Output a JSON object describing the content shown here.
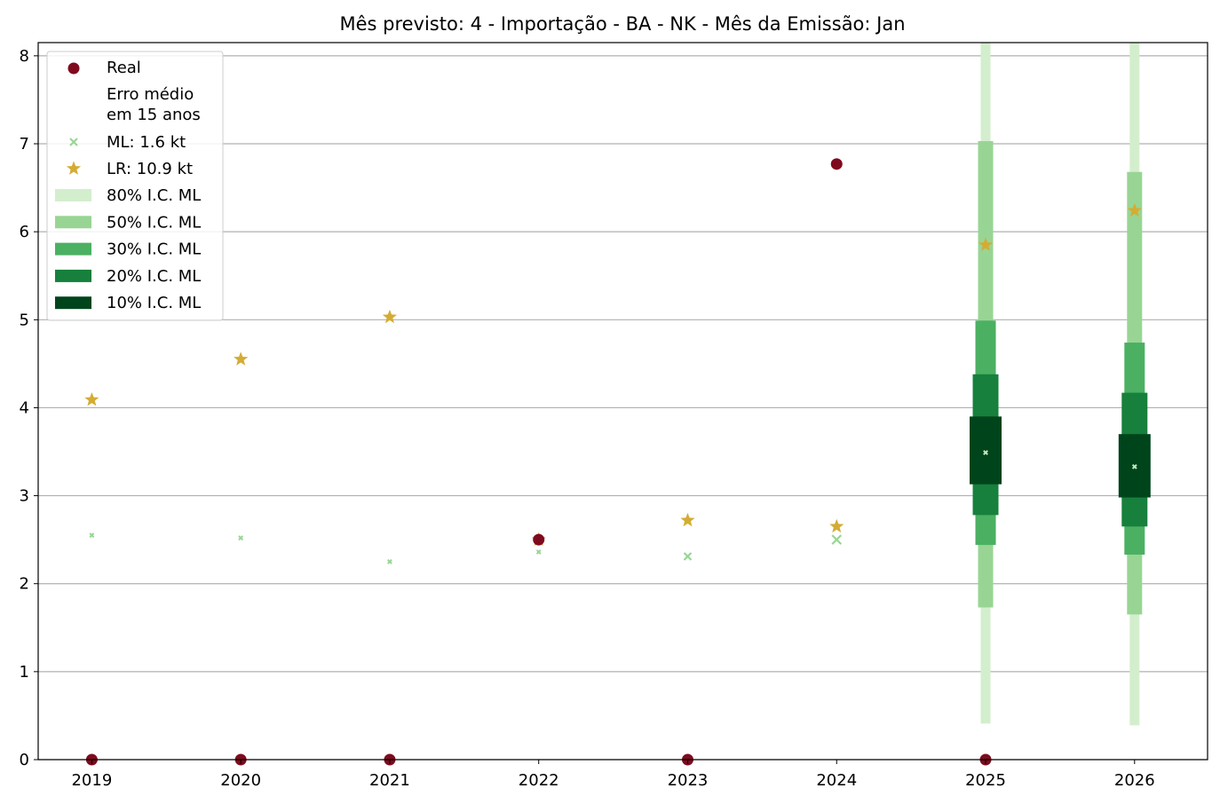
{
  "chart_data": {
    "type": "scatter",
    "title": "Mês previsto: 4 - Importação - BA - NK - Mês da Emissão: Jan",
    "xlabel": "",
    "ylabel": "",
    "x_ticks": [
      "2019",
      "2020",
      "2021",
      "2022",
      "2023",
      "2024",
      "2025",
      "2026"
    ],
    "y_ticks": [
      "0",
      "1",
      "2",
      "3",
      "4",
      "5",
      "6",
      "7",
      "8"
    ],
    "xlim": [
      2018.64,
      2026.49
    ],
    "ylim": [
      0,
      8.15
    ],
    "grid": "y",
    "legend_position": "top-left",
    "legend": {
      "real": "Real",
      "subtitle_line1": "Erro médio",
      "subtitle_line2": "em 15 anos",
      "ml": "ML: 1.6 kt",
      "lr": "LR: 10.9 kt",
      "ci80": "80% I.C. ML",
      "ci50": "50% I.C. ML",
      "ci30": "30% I.C. ML",
      "ci20": "20% I.C. ML",
      "ci10": "10% I.C. ML"
    },
    "colors": {
      "real": "#7f0a1e",
      "ml": "#98d594",
      "lr": "#d4ac34",
      "ci80": "#d3eecd",
      "ci50": "#98d594",
      "ci30": "#4bb062",
      "ci20": "#16803c",
      "ci10": "#00441b",
      "grid": "#b0b0b0"
    },
    "series": [
      {
        "name": "Real",
        "x": [
          2019,
          2020,
          2021,
          2022,
          2023,
          2024,
          2025
        ],
        "y": [
          0,
          0,
          0,
          2.5,
          0,
          6.77,
          0
        ]
      },
      {
        "name": "ML: 1.6 kt",
        "x": [
          2019,
          2020,
          2021,
          2022,
          2023,
          2024,
          2025,
          2026
        ],
        "y": [
          2.55,
          2.52,
          2.25,
          2.36,
          2.31,
          2.5,
          3.49,
          3.33
        ]
      },
      {
        "name": "LR: 10.9 kt",
        "x": [
          2019,
          2020,
          2021,
          2022,
          2023,
          2024,
          2025,
          2026
        ],
        "y": [
          4.09,
          4.55,
          5.03,
          2.5,
          2.72,
          2.65,
          5.85,
          6.24
        ]
      }
    ],
    "intervals": [
      {
        "x": 2025,
        "ci80": [
          0.41,
          8.15
        ],
        "ci50": [
          1.73,
          7.03
        ],
        "ci30": [
          2.44,
          4.99
        ],
        "ci20": [
          2.78,
          4.38
        ],
        "ci10": [
          3.13,
          3.9
        ]
      },
      {
        "x": 2026,
        "ci80": [
          0.39,
          8.15
        ],
        "ci50": [
          1.65,
          6.68
        ],
        "ci30": [
          2.33,
          4.74
        ],
        "ci20": [
          2.65,
          4.17
        ],
        "ci10": [
          2.98,
          3.7
        ]
      }
    ]
  }
}
